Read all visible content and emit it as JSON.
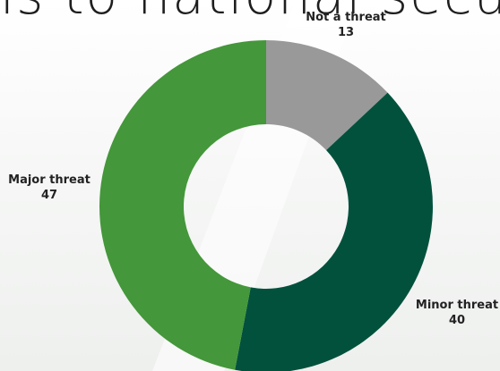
{
  "heading": {
    "text": "is to national security?"
  },
  "chart_data": {
    "type": "pie",
    "donut": true,
    "start_angle_deg": 0,
    "direction": "clockwise",
    "categories": [
      "Not a threat",
      "Minor threat",
      "Major threat"
    ],
    "values": [
      13,
      40,
      47
    ],
    "colors": [
      "#999999",
      "#02513d",
      "#44973a"
    ],
    "title": "",
    "legend": "none",
    "label_style": "outside, bold, category then value"
  }
}
